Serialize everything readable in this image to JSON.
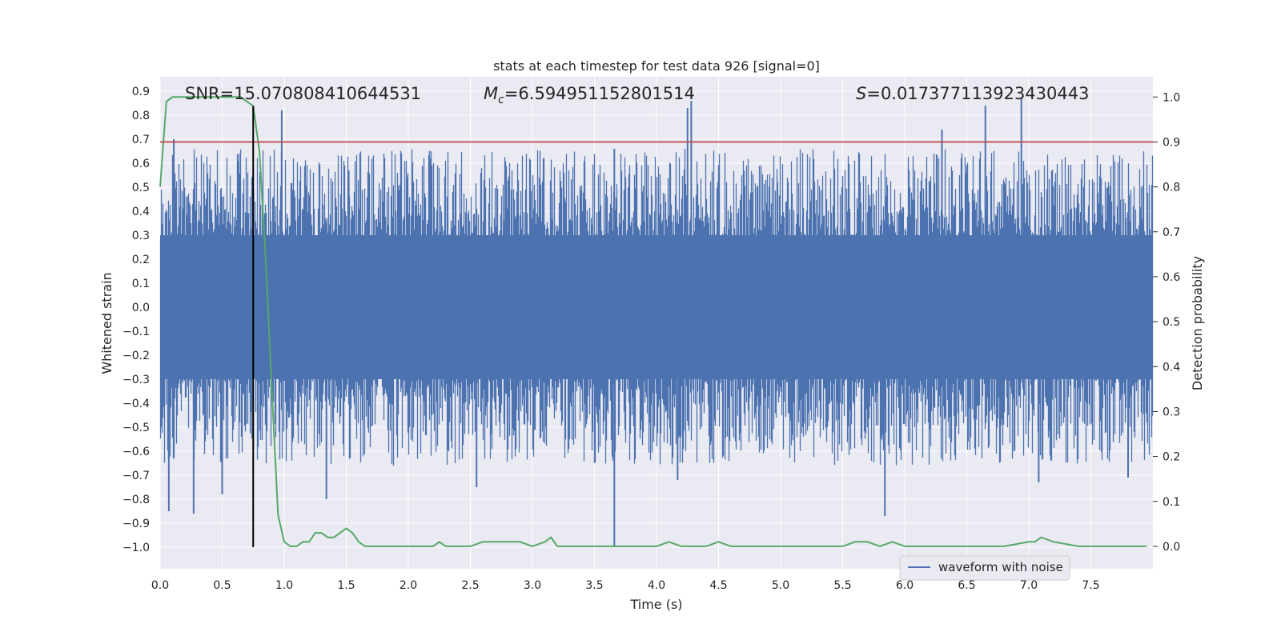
{
  "chart_data": {
    "type": "line",
    "title": "stats at each timestep for test data 926 [signal=0]",
    "xlabel": "Time (s)",
    "ylabel_left": "Whitened strain",
    "ylabel_right": "Detection probability",
    "xlim": [
      0.0,
      8.0
    ],
    "ylim_left": [
      -1.09,
      0.96
    ],
    "ylim_right": [
      -0.05,
      1.045
    ],
    "x_ticks": [
      "0.0",
      "0.5",
      "1.0",
      "1.5",
      "2.0",
      "2.5",
      "3.0",
      "3.5",
      "4.0",
      "4.5",
      "5.0",
      "5.5",
      "6.0",
      "6.5",
      "7.0",
      "7.5"
    ],
    "y_ticks_left": [
      "0.9",
      "0.8",
      "0.7",
      "0.6",
      "0.5",
      "0.4",
      "0.3",
      "0.2",
      "0.1",
      "0.0",
      "-0.1",
      "-0.2",
      "-0.3",
      "-0.4",
      "-0.5",
      "-0.6",
      "-0.7",
      "-0.8",
      "-0.9",
      "-1.0"
    ],
    "y_ticks_right": [
      "1.0",
      "0.9",
      "0.8",
      "0.7",
      "0.6",
      "0.5",
      "0.4",
      "0.3",
      "0.2",
      "0.1",
      "0.0"
    ],
    "grid": true,
    "legend_position": "lower-right",
    "annotations": {
      "snr": "SNR=15.070808410644531",
      "mc": "=6.594951152801514",
      "mc_symbol": "M",
      "mc_sub": "c",
      "s": "=0.017377113923430443",
      "s_symbol": "S"
    },
    "threshold_probability": 0.9,
    "marker_time": 0.75,
    "series": [
      {
        "name": "waveform with noise",
        "color": "#4c72b0",
        "axis": "left",
        "envelope_typical": 0.4,
        "envelope_min": -1.0,
        "envelope_max": 0.87
      },
      {
        "color": "#55a868",
        "axis": "right",
        "x": [
          0.0,
          0.05,
          0.1,
          0.2,
          0.3,
          0.4,
          0.5,
          0.6,
          0.65,
          0.7,
          0.75,
          0.8,
          0.85,
          0.9,
          0.95,
          1.0,
          1.05,
          1.1,
          1.15,
          1.2,
          1.25,
          1.3,
          1.35,
          1.4,
          1.45,
          1.5,
          1.55,
          1.6,
          1.65,
          1.7,
          1.8,
          1.9,
          2.0,
          2.1,
          2.2,
          2.25,
          2.3,
          2.4,
          2.5,
          2.6,
          2.7,
          2.8,
          2.9,
          3.0,
          3.1,
          3.15,
          3.2,
          3.3,
          3.4,
          3.5,
          3.6,
          3.7,
          3.8,
          3.9,
          4.0,
          4.1,
          4.2,
          4.3,
          4.4,
          4.5,
          4.6,
          4.7,
          4.8,
          4.9,
          5.0,
          5.2,
          5.4,
          5.5,
          5.6,
          5.7,
          5.8,
          5.9,
          6.0,
          6.2,
          6.4,
          6.6,
          6.8,
          7.0,
          7.05,
          7.1,
          7.2,
          7.4,
          7.6,
          7.8,
          7.95
        ],
        "y": [
          0.8,
          0.99,
          1.0,
          1.0,
          1.0,
          1.0,
          1.0,
          1.0,
          1.0,
          0.99,
          0.98,
          0.88,
          0.64,
          0.35,
          0.07,
          0.01,
          0.0,
          0.0,
          0.01,
          0.01,
          0.03,
          0.03,
          0.02,
          0.02,
          0.03,
          0.04,
          0.03,
          0.01,
          0.0,
          0.0,
          0.0,
          0.0,
          0.0,
          0.0,
          0.0,
          0.01,
          0.0,
          0.0,
          0.0,
          0.01,
          0.01,
          0.01,
          0.01,
          0.0,
          0.01,
          0.02,
          0.0,
          0.0,
          0.0,
          0.0,
          0.0,
          0.0,
          0.0,
          0.0,
          0.0,
          0.01,
          0.0,
          0.0,
          0.0,
          0.01,
          0.0,
          0.0,
          0.0,
          0.0,
          0.0,
          0.0,
          0.0,
          0.0,
          0.01,
          0.01,
          0.0,
          0.01,
          0.0,
          0.0,
          0.0,
          0.0,
          0.0,
          0.01,
          0.01,
          0.02,
          0.01,
          0.0,
          0.0,
          0.0,
          0.0
        ]
      }
    ],
    "waveform_peaks": [
      {
        "x": 0.07,
        "y": -0.85
      },
      {
        "x": 0.27,
        "y": -0.86
      },
      {
        "x": 0.5,
        "y": -0.78
      },
      {
        "x": 0.11,
        "y": 0.7
      },
      {
        "x": 0.98,
        "y": 0.82
      },
      {
        "x": 1.34,
        "y": -0.8
      },
      {
        "x": 1.52,
        "y": 0.57
      },
      {
        "x": 2.55,
        "y": -0.75
      },
      {
        "x": 3.66,
        "y": -1.0
      },
      {
        "x": 3.66,
        "y": 0.66
      },
      {
        "x": 4.17,
        "y": -0.72
      },
      {
        "x": 4.25,
        "y": 0.83
      },
      {
        "x": 4.28,
        "y": 0.86
      },
      {
        "x": 5.84,
        "y": -0.87
      },
      {
        "x": 6.3,
        "y": 0.74
      },
      {
        "x": 6.65,
        "y": 0.84
      },
      {
        "x": 6.94,
        "y": 0.87
      },
      {
        "x": 7.08,
        "y": -0.73
      },
      {
        "x": 7.8,
        "y": -0.71
      }
    ]
  }
}
